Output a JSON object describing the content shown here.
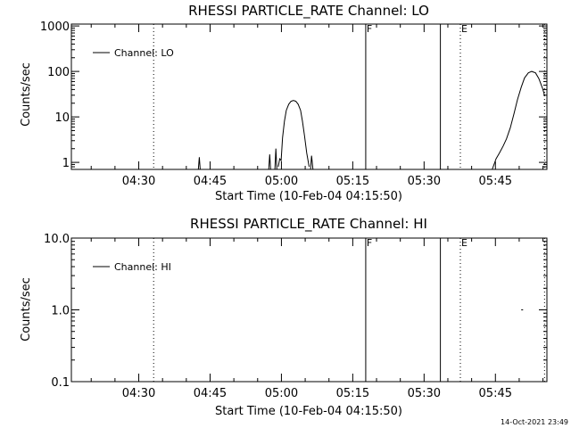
{
  "chart_data": [
    {
      "type": "line",
      "title": "RHESSI PARTICLE_RATE Channel: LO",
      "xlabel": "Start Time (10-Feb-04 04:15:50)",
      "ylabel": "Counts/sec",
      "yscale": "log",
      "xlim_minutes": [
        0,
        100
      ],
      "ylim": [
        0.7,
        1100
      ],
      "x_ticks": [
        {
          "label": "04:30",
          "t": 14.17
        },
        {
          "label": "04:45",
          "t": 29.17
        },
        {
          "label": "05:00",
          "t": 44.17
        },
        {
          "label": "05:15",
          "t": 59.17
        },
        {
          "label": "05:30",
          "t": 74.17
        },
        {
          "label": "05:45",
          "t": 89.17
        }
      ],
      "y_ticks": [
        {
          "label": "1",
          "v": 1
        },
        {
          "label": "10",
          "v": 10
        },
        {
          "label": "100",
          "v": 100
        },
        {
          "label": "1000",
          "v": 1000
        }
      ],
      "legend": {
        "label": "Channel: LO",
        "placement": "top-left"
      },
      "markers": [
        {
          "t": 17.3,
          "style": "dotted",
          "label": ""
        },
        {
          "t": 61.9,
          "style": "solid",
          "label": "F"
        },
        {
          "t": 77.6,
          "style": "solid",
          "label": ""
        },
        {
          "t": 81.8,
          "style": "dotted",
          "label": "E"
        },
        {
          "t": 99.5,
          "style": "dotted",
          "label": ""
        }
      ],
      "series": [
        {
          "segments": [
            [
              [
                26.7,
                0.7
              ],
              [
                26.9,
                1.3
              ],
              [
                27.1,
                0.7
              ]
            ],
            [
              [
                41.5,
                0.7
              ],
              [
                41.7,
                1.5
              ],
              [
                41.9,
                0.7
              ]
            ],
            [
              [
                42.8,
                0.7
              ],
              [
                43.0,
                2.0
              ],
              [
                43.2,
                0.7
              ]
            ],
            [
              [
                43.5,
                0.8
              ],
              [
                43.8,
                1.2
              ],
              [
                44.1,
                1.1
              ],
              [
                44.4,
                3.5
              ],
              [
                44.8,
                8
              ],
              [
                45.2,
                14
              ],
              [
                45.7,
                19
              ],
              [
                46.2,
                22
              ],
              [
                46.7,
                23
              ],
              [
                47.2,
                22
              ],
              [
                47.7,
                19
              ],
              [
                48.2,
                14
              ],
              [
                48.6,
                8
              ],
              [
                49.0,
                4
              ],
              [
                49.5,
                1.6
              ],
              [
                50.0,
                0.8
              ]
            ],
            [
              [
                50.3,
                0.7
              ],
              [
                50.5,
                1.4
              ],
              [
                50.8,
                0.7
              ]
            ],
            [
              [
                88.5,
                0.7
              ],
              [
                89.3,
                1.2
              ],
              [
                90.0,
                1.6
              ],
              [
                90.8,
                2.3
              ],
              [
                91.5,
                3.3
              ],
              [
                92.3,
                5.8
              ],
              [
                93.1,
                12
              ],
              [
                93.8,
                24
              ],
              [
                94.6,
                45
              ],
              [
                95.3,
                72
              ],
              [
                96.1,
                93
              ],
              [
                96.8,
                100
              ],
              [
                97.6,
                93
              ],
              [
                98.3,
                70
              ],
              [
                99.1,
                42
              ],
              [
                99.5,
                30
              ]
            ]
          ]
        }
      ]
    },
    {
      "type": "line",
      "title": "RHESSI PARTICLE_RATE Channel: HI",
      "xlabel": "Start Time (10-Feb-04 04:15:50)",
      "ylabel": "Counts/sec",
      "yscale": "log",
      "xlim_minutes": [
        0,
        100
      ],
      "ylim": [
        0.1,
        10
      ],
      "x_ticks": [
        {
          "label": "04:30",
          "t": 14.17
        },
        {
          "label": "04:45",
          "t": 29.17
        },
        {
          "label": "05:00",
          "t": 44.17
        },
        {
          "label": "05:15",
          "t": 59.17
        },
        {
          "label": "05:30",
          "t": 74.17
        },
        {
          "label": "05:45",
          "t": 89.17
        }
      ],
      "y_ticks": [
        {
          "label": "0.1",
          "v": 0.1
        },
        {
          "label": "1.0",
          "v": 1
        },
        {
          "label": "10.0",
          "v": 10
        }
      ],
      "legend": {
        "label": "Channel: HI",
        "placement": "top-left"
      },
      "markers": [
        {
          "t": 17.3,
          "style": "dotted",
          "label": ""
        },
        {
          "t": 61.9,
          "style": "solid",
          "label": "F"
        },
        {
          "t": 77.6,
          "style": "solid",
          "label": ""
        },
        {
          "t": 81.8,
          "style": "dotted",
          "label": "E"
        },
        {
          "t": 99.5,
          "style": "dotted",
          "label": ""
        }
      ],
      "series": [
        {
          "segments": [
            [
              [
                94.6,
                1.0
              ],
              [
                95.0,
                1.0
              ]
            ]
          ]
        }
      ]
    }
  ],
  "timestamp": "14-Oct-2021 23:49"
}
